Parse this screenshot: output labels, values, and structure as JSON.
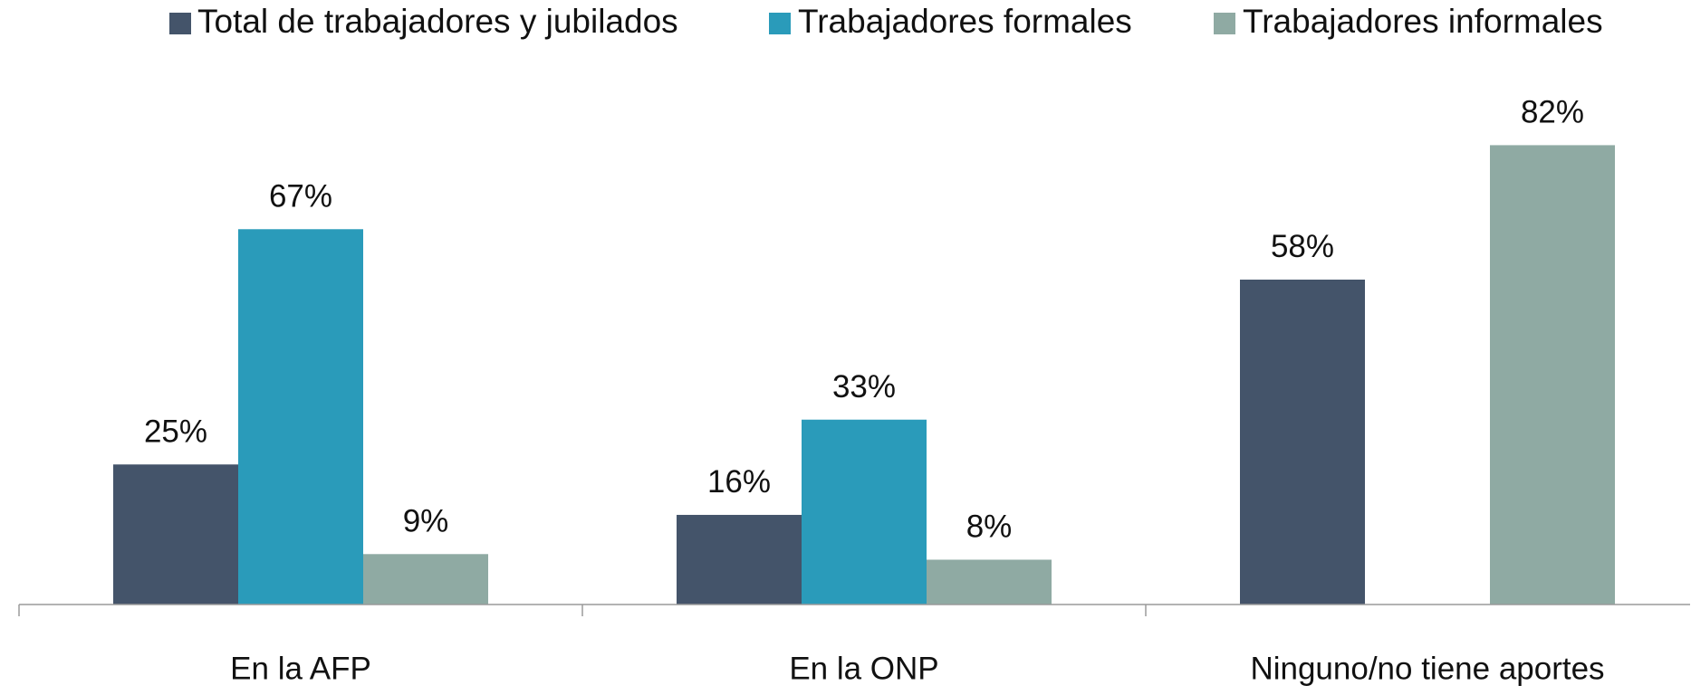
{
  "chart_data": {
    "type": "bar",
    "categories": [
      "En la AFP",
      "En la ONP",
      "Ninguno/no tiene aportes"
    ],
    "series": [
      {
        "name": "Total de trabajadores y jubilados",
        "color": "#44546a",
        "values": [
          25,
          16,
          58
        ],
        "value_labels": [
          "25%",
          "16%",
          "58%"
        ]
      },
      {
        "name": "Trabajadores formales",
        "color": "#2a9bba",
        "values": [
          67,
          33,
          null
        ],
        "value_labels": [
          "67%",
          "33%",
          null
        ]
      },
      {
        "name": "Trabajadores informales",
        "color": "#8faaa3",
        "values": [
          9,
          8,
          82
        ],
        "value_labels": [
          "9%",
          "8%",
          "82%"
        ]
      }
    ],
    "legend": "top"
  }
}
